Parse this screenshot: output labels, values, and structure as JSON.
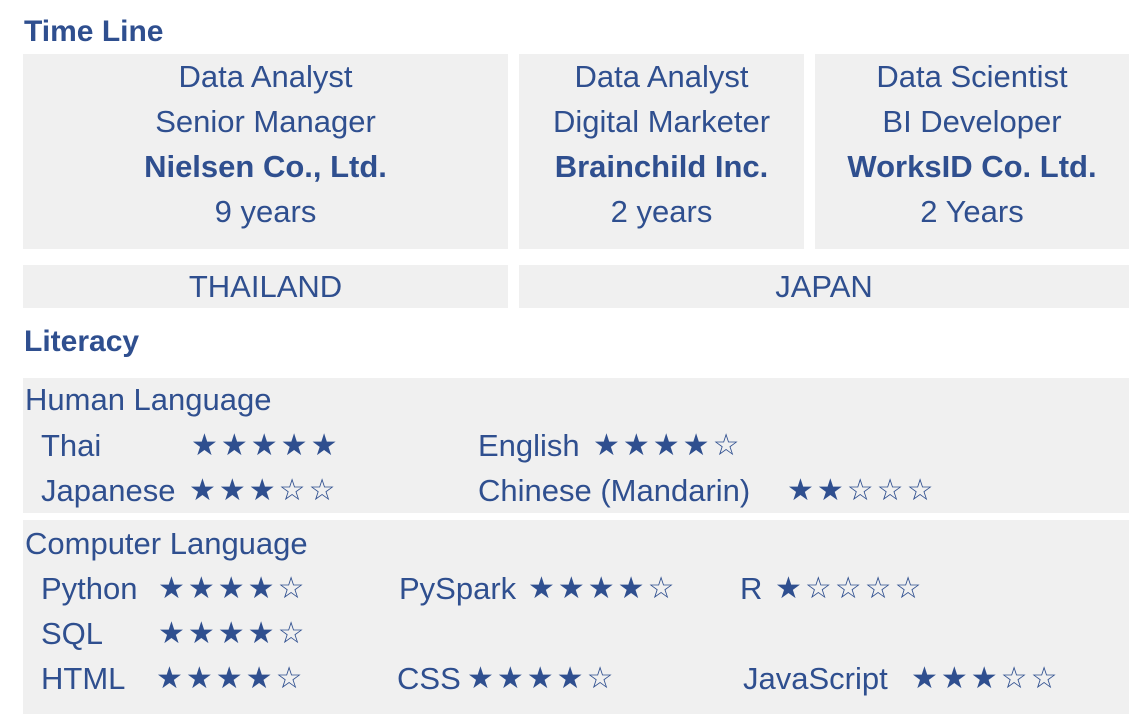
{
  "timeline": {
    "heading": "Time Line",
    "jobs": [
      {
        "role1": "Data Analyst",
        "role2": "Senior Manager",
        "company": "Nielsen Co., Ltd.",
        "duration": "9 years"
      },
      {
        "role1": "Data Analyst",
        "role2": "Digital Marketer",
        "company": "Brainchild Inc.",
        "duration": "2 years"
      },
      {
        "role1": "Data Scientist",
        "role2": "BI Developer",
        "company": "WorksID Co. Ltd.",
        "duration": "2 Years"
      }
    ],
    "countries": [
      "THAILAND",
      "JAPAN"
    ]
  },
  "literacy": {
    "heading": "Literacy",
    "human": {
      "title": "Human Language",
      "items": [
        {
          "name": "Thai",
          "stars": "★★★★★",
          "rating": 5
        },
        {
          "name": "English",
          "stars": "★★★★☆",
          "rating": 4
        },
        {
          "name": "Japanese",
          "stars": "★★★☆☆",
          "rating": 3
        },
        {
          "name": "Chinese (Mandarin)",
          "stars": "★★☆☆☆",
          "rating": 2
        }
      ]
    },
    "computer": {
      "title": "Computer Language",
      "items": [
        {
          "name": "Python",
          "stars": "★★★★☆",
          "rating": 4
        },
        {
          "name": "PySpark",
          "stars": "★★★★☆",
          "rating": 4
        },
        {
          "name": "R",
          "stars": "★☆☆☆☆",
          "rating": 1
        },
        {
          "name": "SQL",
          "stars": "★★★★☆",
          "rating": 4
        },
        {
          "name": "HTML",
          "stars": "★★★★☆",
          "rating": 4
        },
        {
          "name": "CSS",
          "stars": "★★★★☆",
          "rating": 4
        },
        {
          "name": "JavaScript",
          "stars": "★★★☆☆",
          "rating": 3
        }
      ]
    }
  }
}
